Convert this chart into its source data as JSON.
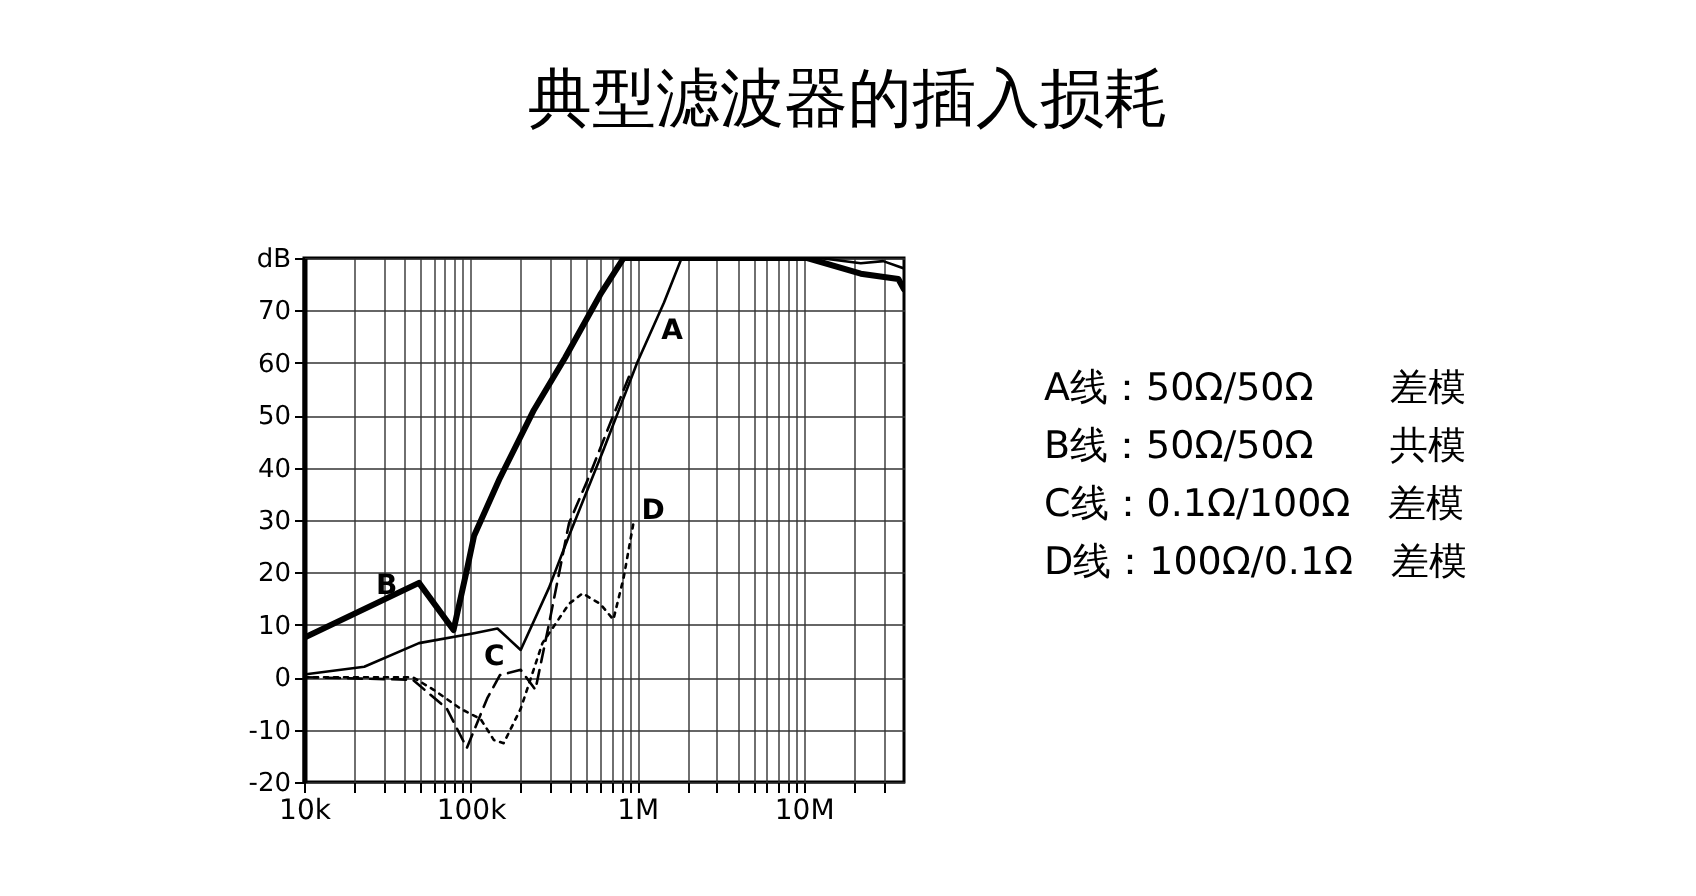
{
  "chart_data": {
    "type": "line",
    "title": "典型滤波器的插入损耗",
    "log": "x",
    "grid": true,
    "marker": "none",
    "xlim": [
      10000,
      40000000
    ],
    "xticks": [
      {
        "value": 10000,
        "label": "10k"
      },
      {
        "value": 20000,
        "label": null
      },
      {
        "value": 30000,
        "label": null
      },
      {
        "value": 40000,
        "label": null
      },
      {
        "value": 50000,
        "label": null
      },
      {
        "value": 60000,
        "label": null
      },
      {
        "value": 70000,
        "label": null
      },
      {
        "value": 80000,
        "label": null
      },
      {
        "value": 90000,
        "label": null
      },
      {
        "value": 100000,
        "label": "100k"
      },
      {
        "value": 200000,
        "label": null
      },
      {
        "value": 300000,
        "label": null
      },
      {
        "value": 400000,
        "label": null
      },
      {
        "value": 500000,
        "label": null
      },
      {
        "value": 600000,
        "label": null
      },
      {
        "value": 700000,
        "label": null
      },
      {
        "value": 800000,
        "label": null
      },
      {
        "value": 900000,
        "label": null
      },
      {
        "value": 1000000,
        "label": "1M"
      },
      {
        "value": 2000000,
        "label": null
      },
      {
        "value": 3000000,
        "label": null
      },
      {
        "value": 4000000,
        "label": null
      },
      {
        "value": 5000000,
        "label": null
      },
      {
        "value": 6000000,
        "label": null
      },
      {
        "value": 7000000,
        "label": null
      },
      {
        "value": 8000000,
        "label": null
      },
      {
        "value": 9000000,
        "label": null
      },
      {
        "value": 10000000,
        "label": "10M"
      },
      {
        "value": 20000000,
        "label": null
      },
      {
        "value": 30000000,
        "label": null
      }
    ],
    "ylim": [
      -20,
      80
    ],
    "yticks": [
      -20,
      -10,
      0,
      10,
      20,
      30,
      40,
      50,
      60,
      70,
      {
        "value": 80,
        "label": "dB"
      }
    ],
    "series": [
      {
        "name": "A",
        "color": "#000000",
        "line_style": "solid",
        "x": [
          10000,
          23000,
          49000,
          105000,
          145000,
          200000,
          295000,
          390000,
          630000,
          1000000,
          1450000,
          1850000,
          12500000,
          22000000,
          30000000,
          40000000
        ],
        "values": [
          0.5,
          2,
          6.5,
          8.4,
          9.3,
          5.2,
          17,
          27,
          43.5,
          60,
          71.5,
          80,
          80,
          79,
          79.4,
          78
        ]
      },
      {
        "name": "B",
        "color": "#000000",
        "line_style": "solid",
        "x": [
          10000,
          49000,
          79000,
          95000,
          105000,
          150000,
          240000,
          370000,
          600000,
          830000,
          10500000,
          22000000,
          37000000,
          40000000
        ],
        "values": [
          7.5,
          18,
          9,
          20.5,
          27,
          38,
          51,
          61,
          73,
          80,
          80,
          77,
          76,
          74
        ]
      },
      {
        "name": "C",
        "color": "#000000",
        "line_style": "dashed",
        "x": [
          10000,
          45000,
          72000,
          95000,
          126000,
          150000,
          200000,
          245000,
          295000,
          390000,
          510000,
          690000,
          910000
        ],
        "values": [
          0,
          -0.5,
          -6,
          -13.5,
          -4,
          0.4,
          1.4,
          -2.4,
          10,
          29.4,
          38,
          48.5,
          58
        ]
      },
      {
        "name": "D",
        "color": "#000000",
        "line_style": "dotted",
        "x": [
          10000,
          45000,
          60000,
          87000,
          115000,
          138000,
          158000,
          200000,
          270000,
          390000,
          470000,
          600000,
          720000,
          830000,
          950000
        ],
        "values": [
          0,
          0,
          -2.4,
          -6,
          -8,
          -12,
          -12.6,
          -6,
          6.5,
          14,
          16,
          14,
          11,
          19,
          29.4
        ]
      }
    ],
    "annotations": [
      "A线：50Ω/50Ω　　差模",
      "B线：50Ω/50Ω　　共模",
      "C线：0.1Ω/100Ω　差模",
      "D线：100Ω/0.1Ω　差模"
    ]
  }
}
